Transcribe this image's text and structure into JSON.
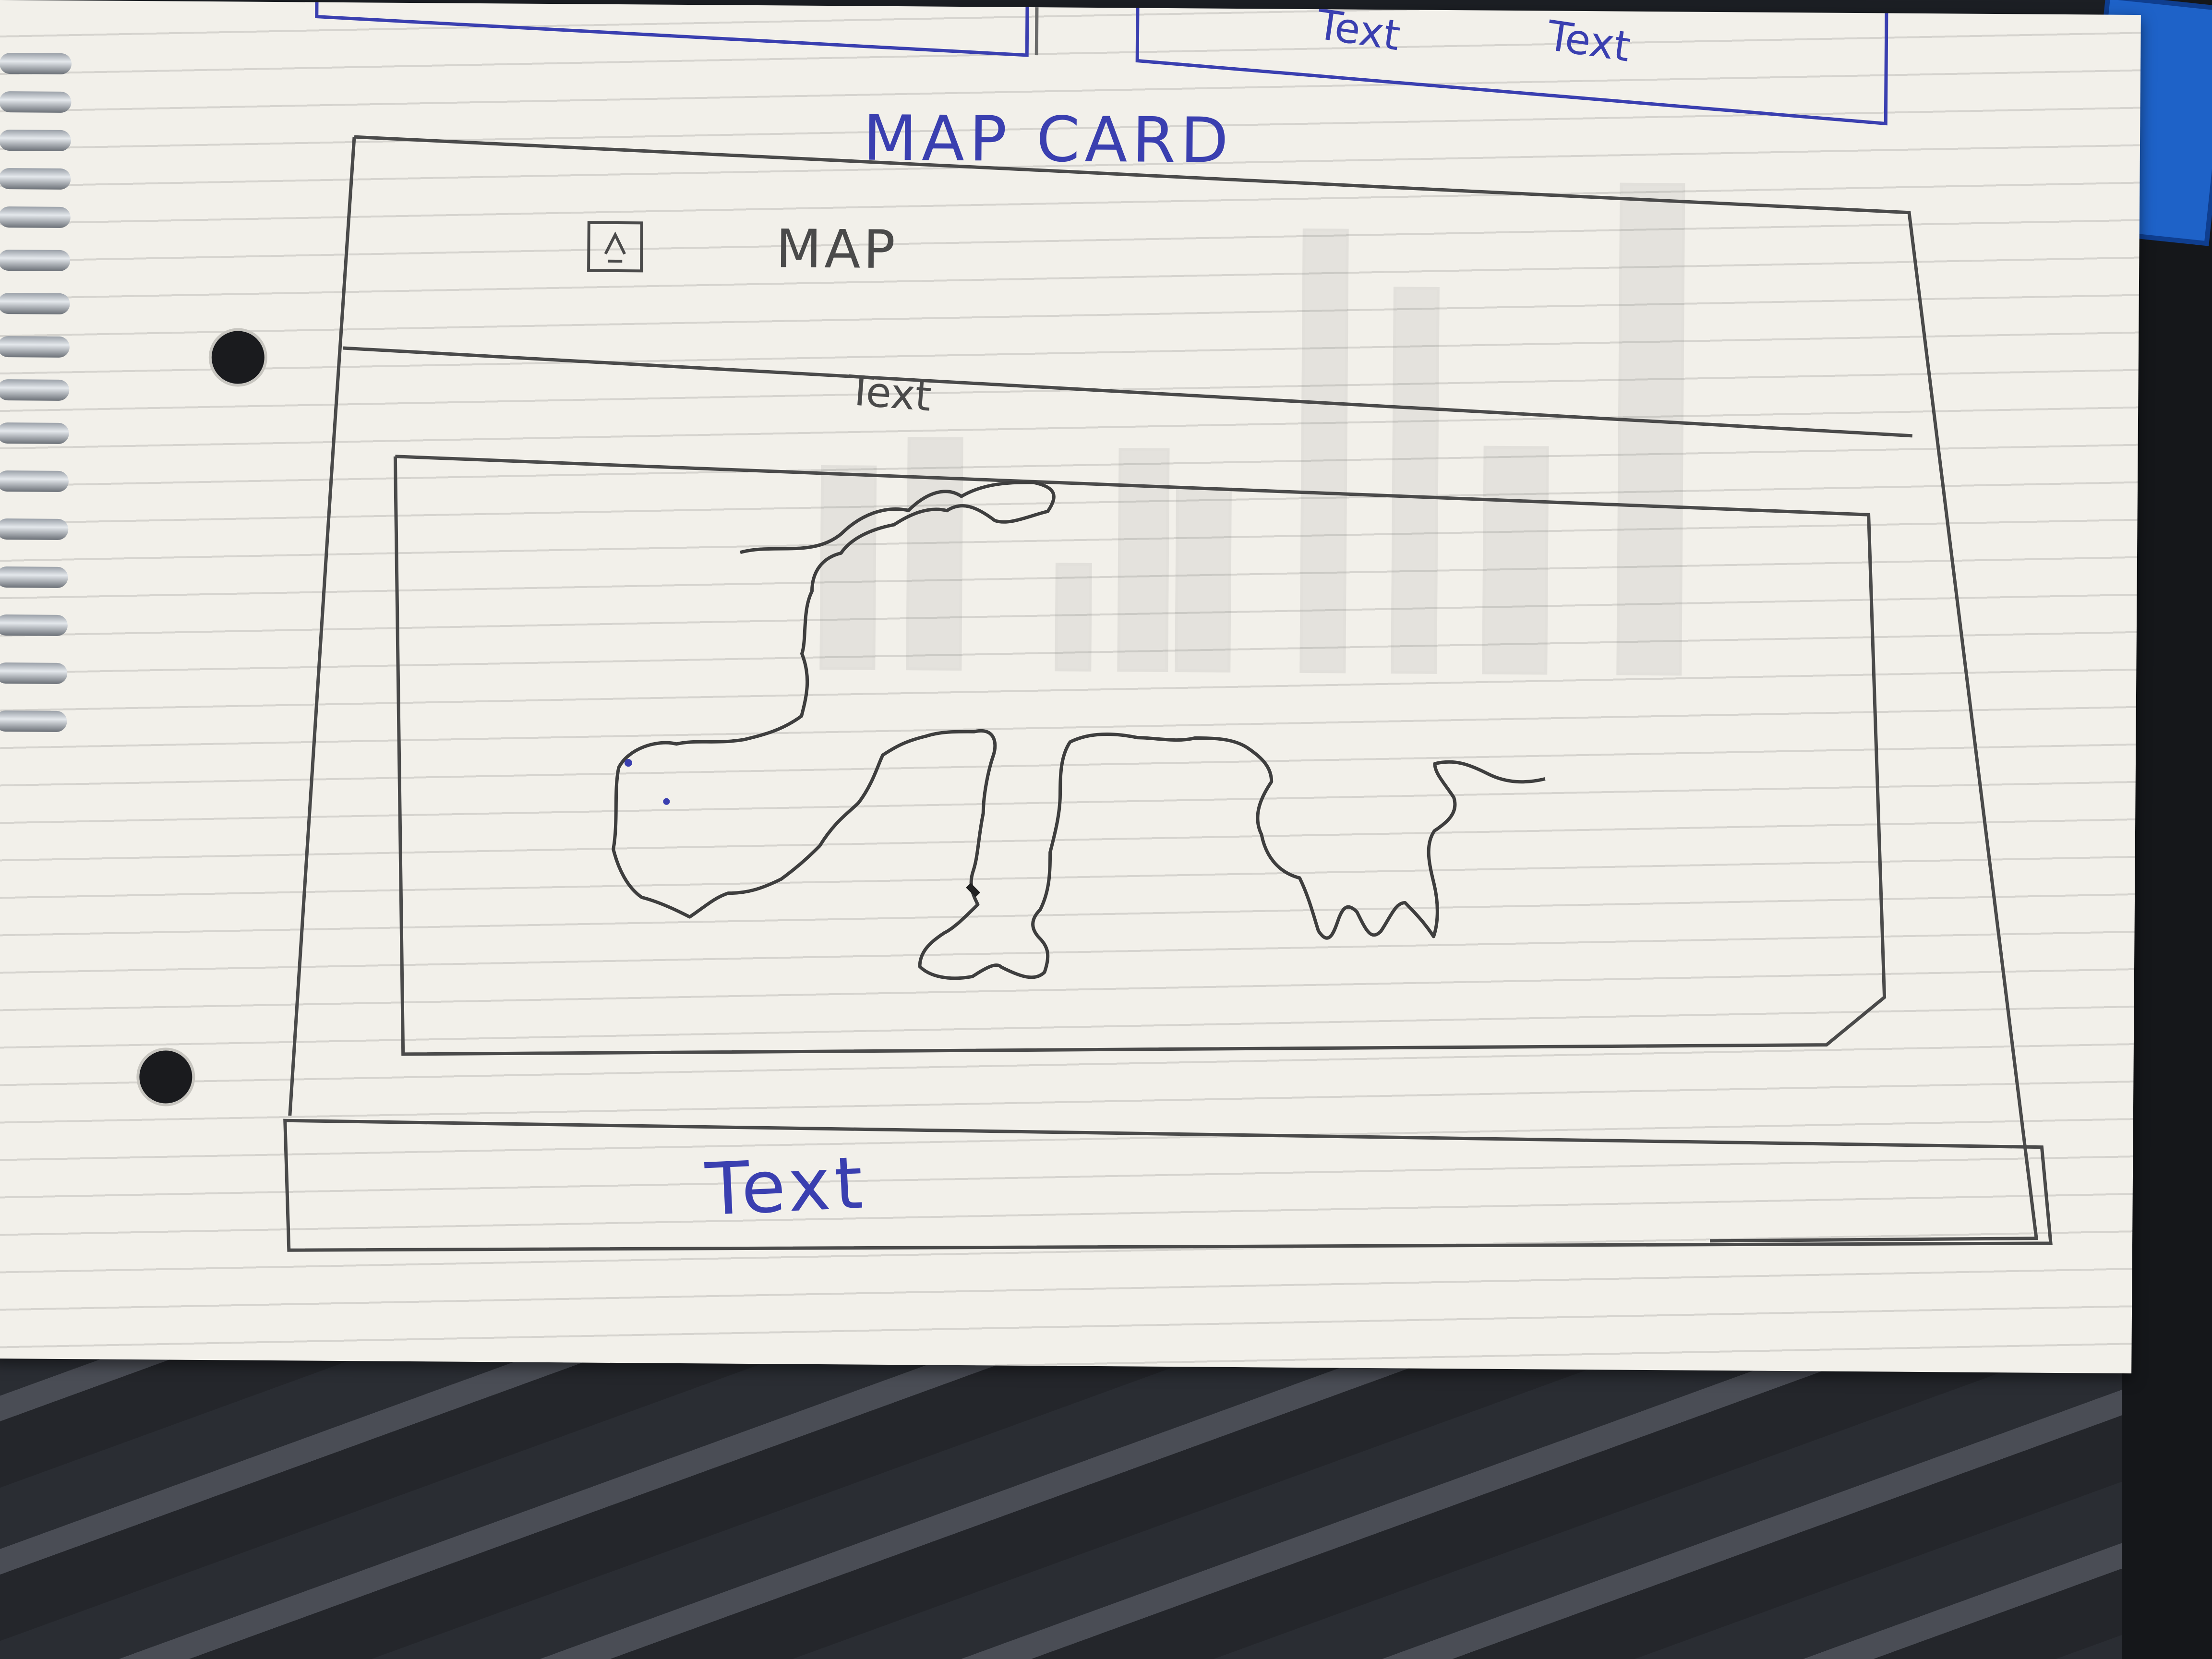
{
  "sketch": {
    "heading": "MAP CARD",
    "card_title": "MAP",
    "card_icon": "map-icon",
    "subtitle": "Text",
    "footer": "Text",
    "top_fragments": [
      "Text",
      "Text"
    ]
  },
  "colors": {
    "pencil": "#4a4a4a",
    "blue_ink": "#3a3fb0",
    "paper": "#f2f0ea"
  }
}
